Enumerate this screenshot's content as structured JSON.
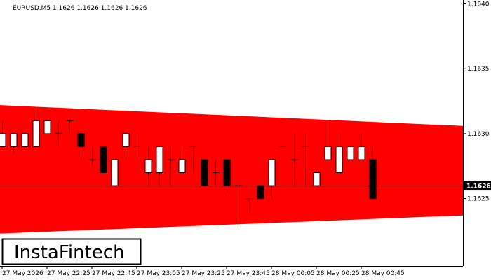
{
  "chart_data": {
    "type": "candlestick",
    "title": "EURUSD,M5  1.1626 1.1626 1.1626 1.1626",
    "watermark": "InstaFintech",
    "categories": [
      "27 May 2026",
      null,
      null,
      null,
      "27 May 22:25",
      null,
      null,
      null,
      "27 May 22:45",
      null,
      null,
      null,
      "27 May 23:05",
      null,
      null,
      null,
      "27 May 23:25",
      null,
      null,
      null,
      "27 May 23:45",
      null,
      null,
      null,
      "28 May 00:05",
      null,
      null,
      null,
      "28 May 00:25",
      null,
      null,
      null,
      "28 May 00:45",
      null
    ],
    "open": [
      1.1629,
      1.1629,
      1.1629,
      1.1629,
      1.163,
      1.163,
      1.1631,
      1.163,
      1.1628,
      1.1629,
      1.1626,
      1.1629,
      1.1629,
      1.1627,
      1.1627,
      1.1628,
      1.1627,
      1.1629,
      1.1628,
      1.1627,
      1.1628,
      1.1626,
      1.1625,
      1.1626,
      1.1626,
      1.1629,
      1.1628,
      1.1629,
      1.1626,
      1.1628,
      1.1627,
      1.1628,
      1.1628,
      1.1628
    ],
    "high": [
      1.1631,
      1.163,
      1.163,
      1.1632,
      1.1631,
      1.1631,
      1.1631,
      1.163,
      1.1629,
      1.1629,
      1.1628,
      1.163,
      1.163,
      1.1629,
      1.1629,
      1.1629,
      1.1629,
      1.1629,
      1.1628,
      1.1628,
      1.1628,
      1.1626,
      1.1625,
      1.1626,
      1.1628,
      1.1629,
      1.163,
      1.163,
      1.1627,
      1.1631,
      1.163,
      1.1629,
      1.163,
      1.1629
    ],
    "low": [
      1.1629,
      1.16285,
      1.1629,
      1.1629,
      1.163,
      1.1629,
      1.163,
      1.1628,
      1.16275,
      1.1627,
      1.1626,
      1.1628,
      1.1628,
      1.1626,
      1.1626,
      1.1626,
      1.1627,
      1.1627,
      1.1626,
      1.1626,
      1.16255,
      1.1623,
      1.1624,
      1.1625,
      1.1625,
      1.1629,
      1.1626,
      1.1626,
      1.1626,
      1.1628,
      1.1627,
      1.1628,
      1.1628,
      1.1625
    ],
    "close": [
      1.163,
      1.163,
      1.163,
      1.1631,
      1.1631,
      1.163,
      1.1631,
      1.1629,
      1.1628,
      1.1627,
      1.1628,
      1.163,
      1.1629,
      1.1628,
      1.1629,
      1.1628,
      1.1628,
      1.1629,
      1.1626,
      1.1627,
      1.1626,
      1.1626,
      1.1625,
      1.1625,
      1.1628,
      1.1629,
      1.1628,
      1.1629,
      1.1627,
      1.1629,
      1.1629,
      1.1629,
      1.1629,
      1.1625
    ],
    "channel": {
      "color": "#ff0000",
      "upper": [
        1.16322,
        1.16306
      ],
      "lower": [
        1.16223,
        1.16237
      ]
    },
    "current_price": 1.1626,
    "ylim": [
      1.16198,
      1.16403
    ],
    "yticks": [
      1.1625,
      {
        "value": 1.163,
        "label": "1.1630"
      },
      1.1635,
      {
        "value": 1.164,
        "label": "1.1640"
      }
    ]
  }
}
